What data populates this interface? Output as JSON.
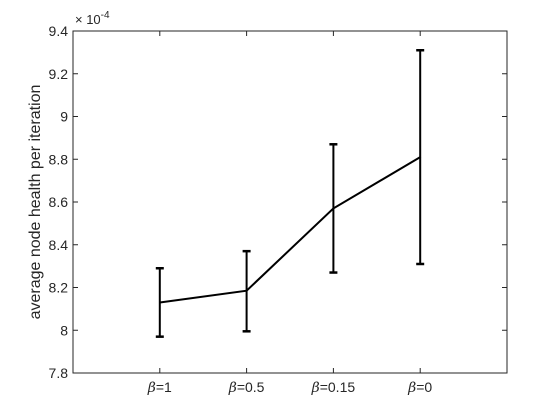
{
  "chart_data": {
    "type": "line",
    "title": "",
    "xlabel": "",
    "ylabel": "average node health per iteration",
    "categories": [
      "β=1",
      "β=0.5",
      "β=0.15",
      "β=0"
    ],
    "category_symbol": "β",
    "category_values": [
      "=1",
      "=0.5",
      "=0.15",
      "=0"
    ],
    "series": [
      {
        "values": [
          8.13,
          8.185,
          8.57,
          8.81
        ],
        "err_upper": [
          8.29,
          8.37,
          8.87,
          9.31
        ],
        "err_lower": [
          7.97,
          7.995,
          8.27,
          8.31
        ],
        "color": "#000000"
      }
    ],
    "ylim": [
      7.8,
      9.4
    ],
    "yticks": [
      7.8,
      8,
      8.2,
      8.4,
      8.6,
      8.8,
      9,
      9.2,
      9.4
    ],
    "ytick_labels": [
      "7.8",
      "8",
      "8.2",
      "8.4",
      "8.6",
      "8.8",
      "9",
      "9.2",
      "9.4"
    ],
    "y_scale_factor": {
      "base": "× 10",
      "exponent": "-4"
    },
    "grid": false,
    "legend": "none"
  }
}
